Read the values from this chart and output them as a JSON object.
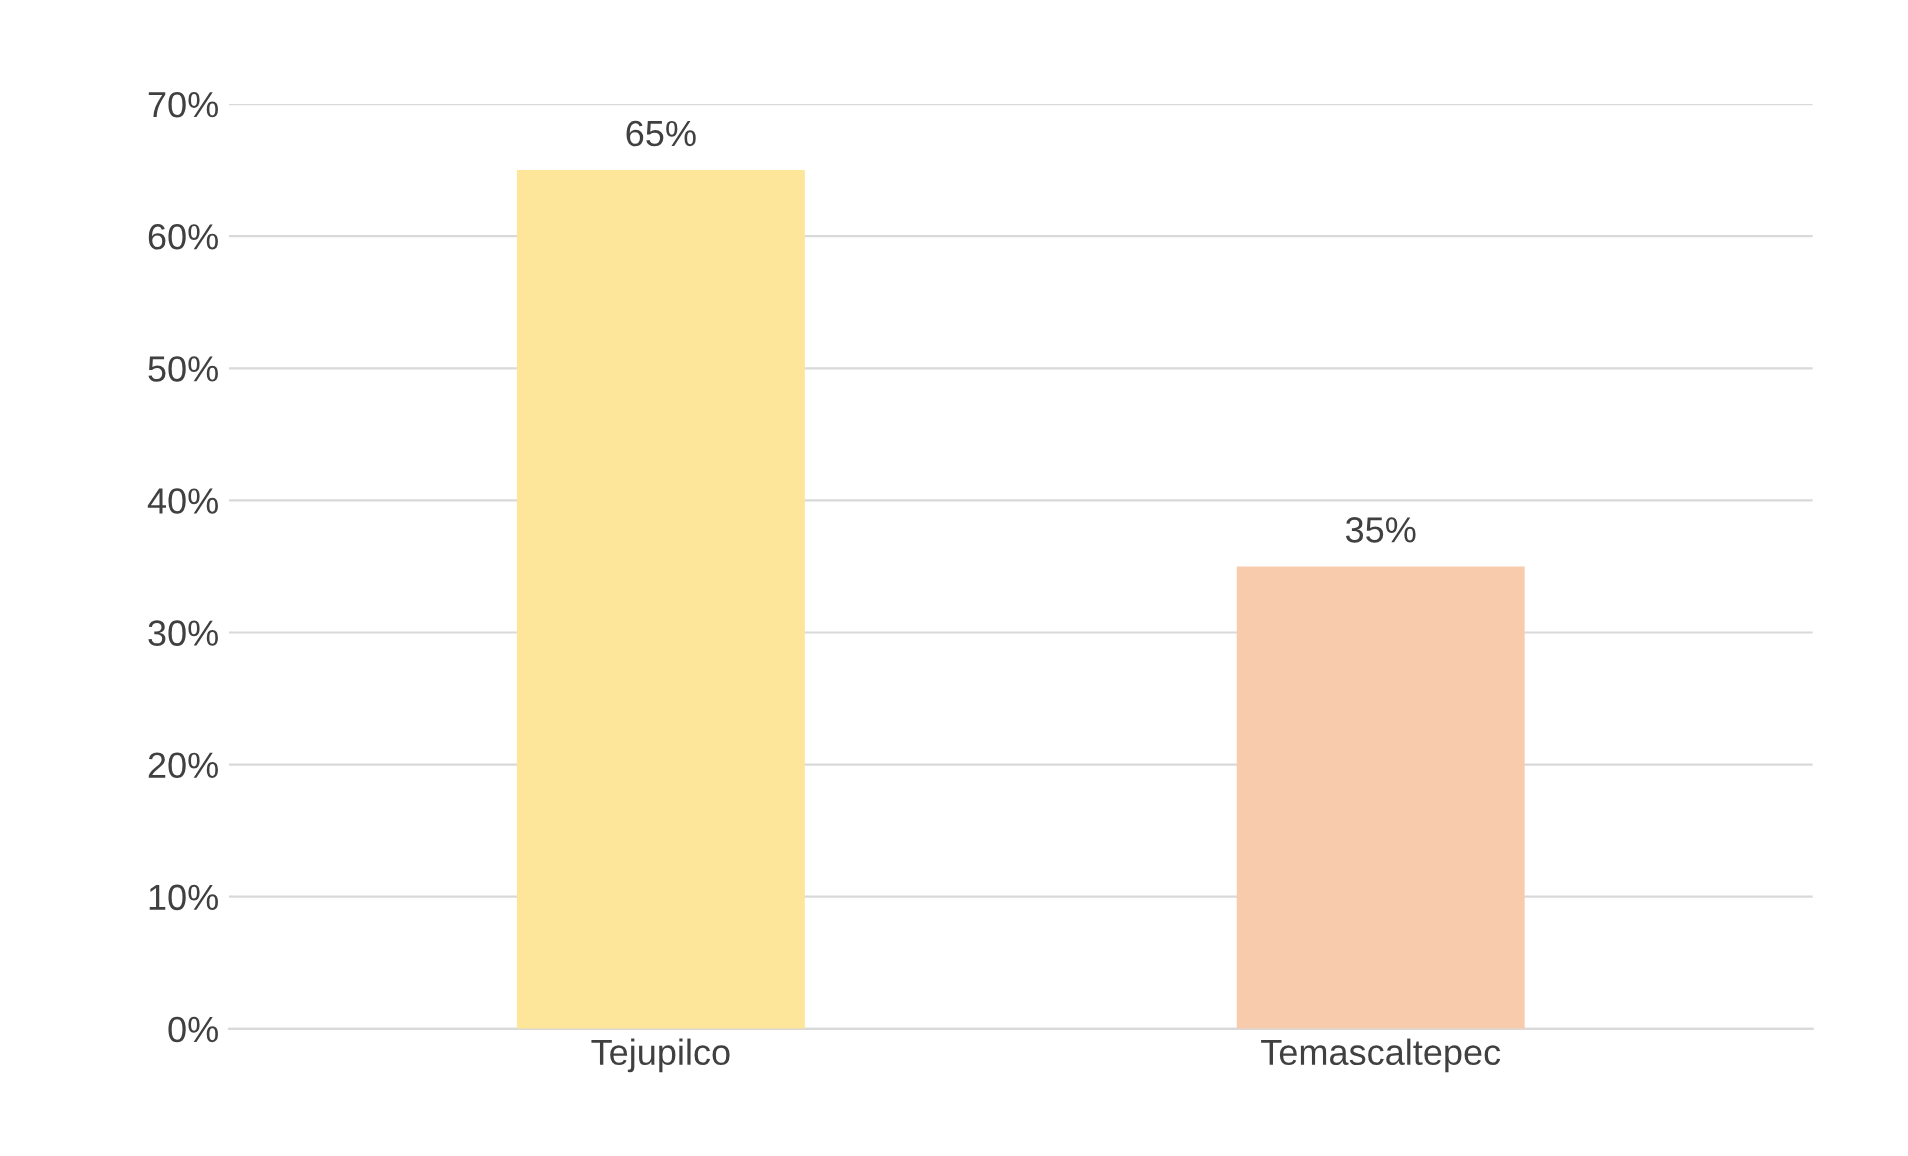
{
  "chart_data": {
    "type": "bar",
    "categories": [
      "Tejupilco",
      "Temascaltepec"
    ],
    "values": [
      65,
      35
    ],
    "colors": [
      "#fde599",
      "#f8cbad"
    ],
    "value_labels": [
      "65%",
      "35%"
    ],
    "ylim": [
      0,
      70
    ],
    "yticks": [
      {
        "value": 0,
        "label": "0%"
      },
      {
        "value": 10,
        "label": "10%"
      },
      {
        "value": 20,
        "label": "20%"
      },
      {
        "value": 30,
        "label": "30%"
      },
      {
        "value": 40,
        "label": "40%"
      },
      {
        "value": 50,
        "label": "50%"
      },
      {
        "value": 60,
        "label": "60%"
      },
      {
        "value": 70,
        "label": "70%"
      }
    ],
    "grid": "y"
  }
}
